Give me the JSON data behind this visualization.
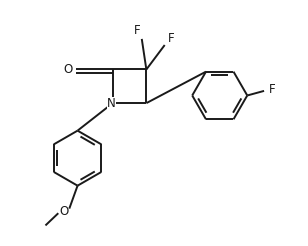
{
  "background": "#ffffff",
  "line_color": "#1a1a1a",
  "line_width": 1.4,
  "font_size": 8.5,
  "fig_width": 3.08,
  "fig_height": 2.46,
  "dpi": 100,
  "xlim": [
    0,
    10
  ],
  "ylim": [
    0,
    8
  ]
}
